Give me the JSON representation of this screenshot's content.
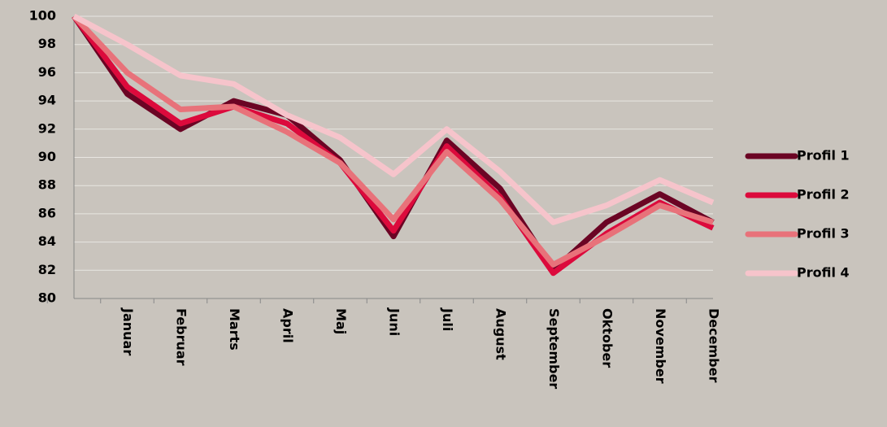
{
  "chart_data": {
    "type": "line",
    "categories": [
      null,
      "Januar",
      "Februar",
      "Marts",
      "April",
      "Maj",
      "Juni",
      "Juli",
      "August",
      "September",
      "Oktober",
      "November",
      "December"
    ],
    "series": [
      {
        "name": "Profil 1",
        "color": "#6b0424",
        "values": [
          100,
          94.5,
          92,
          94,
          93,
          89.8,
          84.4,
          91.2,
          87.8,
          82,
          85.4,
          87.4,
          85.4
        ]
      },
      {
        "name": "Profil 2",
        "color": "#dc0a3c",
        "values": [
          100,
          95,
          92.4,
          93.6,
          92.4,
          89.6,
          84.8,
          90.8,
          87.2,
          81.8,
          84.6,
          86.8,
          85
        ]
      },
      {
        "name": "Profil 3",
        "color": "#e8727a",
        "values": [
          100,
          96,
          93.4,
          93.6,
          91.8,
          89.6,
          85.6,
          90.4,
          87,
          82.4,
          84.4,
          86.6,
          85.4
        ]
      },
      {
        "name": "Profil 4",
        "color": "#f6c4cb",
        "values": [
          100,
          98,
          95.8,
          95.2,
          93,
          91.4,
          88.8,
          92,
          89,
          85.4,
          86.6,
          88.4,
          86.8
        ]
      }
    ],
    "ylim": [
      80,
      100
    ],
    "yticks": [
      80,
      82,
      84,
      86,
      88,
      90,
      92,
      94,
      96,
      98,
      100
    ],
    "grid": true,
    "legend": "right"
  }
}
